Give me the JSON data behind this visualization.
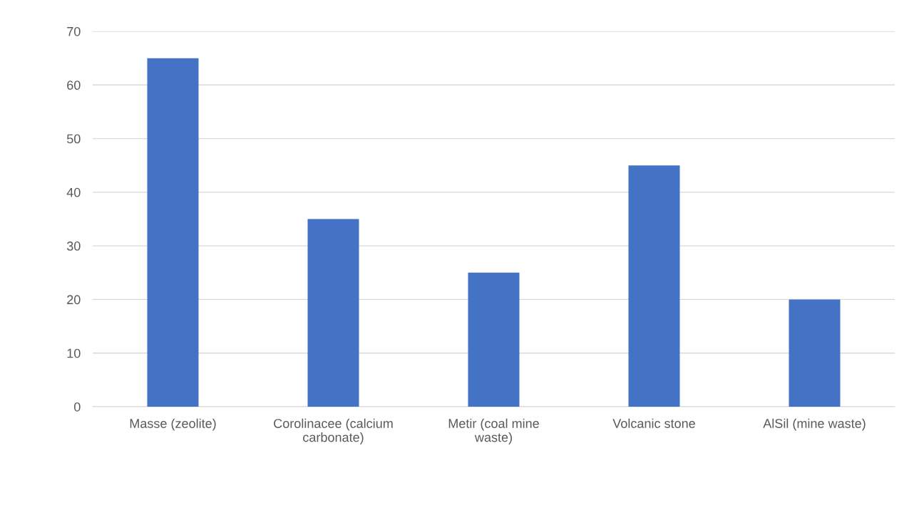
{
  "chart_data": {
    "type": "bar",
    "categories": [
      "Masse (zeolite)",
      "Corolinacee (calcium\ncarbonate)",
      "Metir (coal mine\nwaste)",
      "Volcanic stone",
      "AlSil (mine waste)"
    ],
    "values": [
      65,
      35,
      25,
      45,
      20
    ],
    "color": "#4472c4",
    "ylim": [
      0,
      70
    ],
    "yticks": [
      0,
      10,
      20,
      30,
      40,
      50,
      60,
      70
    ],
    "grid": "y"
  }
}
